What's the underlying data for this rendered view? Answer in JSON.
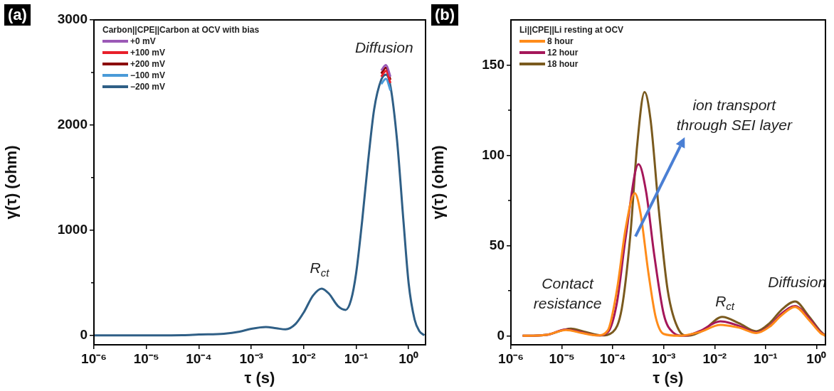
{
  "chart_data": [
    {
      "type": "line",
      "title": "(a)",
      "xlabel": "τ (s)",
      "ylabel": "γ(τ) (ohm)",
      "legend_title": "Carbon||CPE||Carbon at OCV with bias",
      "legend": "top left",
      "log": "x",
      "grid": false,
      "marker": "none",
      "line_style": "solid",
      "xlim": [
        1e-06,
        2.1
      ],
      "ylim": [
        -90,
        3000
      ],
      "xticks": [
        {
          "value": 1e-06,
          "label": "10⁻⁶"
        },
        {
          "value": 1e-05,
          "label": "10⁻⁵"
        },
        {
          "value": 0.0001,
          "label": "10⁻⁴"
        },
        {
          "value": 0.001,
          "label": "10⁻³"
        },
        {
          "value": 0.01,
          "label": "10⁻²"
        },
        {
          "value": 0.1,
          "label": "10⁻¹"
        },
        {
          "value": 1,
          "label": "10⁰"
        }
      ],
      "yticks": [
        0,
        {
          "value": 500,
          "label": null
        },
        1000,
        {
          "value": 1500,
          "label": null
        },
        2000,
        {
          "value": 2500,
          "label": null
        },
        3000
      ],
      "x": [
        1e-06,
        1e-05,
        5e-05,
        0.0001,
        0.0003,
        0.0006,
        0.001,
        0.0019,
        0.003,
        0.0045,
        0.007,
        0.01,
        0.015,
        0.022,
        0.03,
        0.045,
        0.063,
        0.08,
        0.1,
        0.13,
        0.17,
        0.22,
        0.3,
        0.37,
        0.45,
        0.6,
        0.8,
        1.0,
        1.3,
        1.6,
        2.0
      ],
      "series": [
        {
          "name": "+0 mV",
          "color": "#9b59b6",
          "values": [
            null,
            null,
            null,
            null,
            null,
            null,
            null,
            null,
            null,
            null,
            null,
            null,
            null,
            null,
            null,
            null,
            null,
            null,
            null,
            null,
            null,
            null,
            2520,
            2570,
            2460,
            null,
            null,
            null,
            null,
            null,
            null
          ]
        },
        {
          "name": "+100 mV",
          "color": "#e8202a",
          "values": [
            null,
            null,
            null,
            null,
            null,
            null,
            null,
            null,
            null,
            null,
            null,
            null,
            null,
            null,
            null,
            null,
            null,
            null,
            null,
            null,
            null,
            null,
            2460,
            2515,
            2400,
            null,
            null,
            null,
            null,
            null,
            null
          ]
        },
        {
          "name": "+200 mV",
          "color": "#8b0000",
          "values": [
            null,
            null,
            null,
            null,
            null,
            null,
            null,
            null,
            null,
            null,
            null,
            null,
            null,
            null,
            null,
            null,
            null,
            null,
            null,
            null,
            null,
            null,
            2490,
            2545,
            2430,
            null,
            null,
            null,
            null,
            null,
            null
          ]
        },
        {
          "name": "−100 mV",
          "color": "#4a9ad8",
          "values": [
            null,
            null,
            null,
            null,
            null,
            null,
            null,
            null,
            null,
            null,
            null,
            null,
            null,
            null,
            null,
            null,
            null,
            null,
            null,
            null,
            null,
            null,
            2390,
            2440,
            2330,
            null,
            null,
            null,
            null,
            null,
            null
          ]
        },
        {
          "name": "−200 mV",
          "color": "#2f5f86",
          "values": [
            0,
            0,
            2,
            8,
            15,
            35,
            62,
            79,
            67,
            57,
            109,
            218,
            378,
            445,
            398,
            278,
            242,
            338,
            595,
            1090,
            1670,
            2150,
            2430,
            2480,
            2370,
            1860,
            1075,
            495,
            150,
            40,
            0
          ]
        }
      ],
      "annotations": [
        "Diffusion",
        "R$_{ct}$"
      ]
    },
    {
      "type": "line",
      "title": "(b)",
      "xlabel": "τ (s)",
      "ylabel": "γ(τ) (ohm)",
      "legend_title": "Li||CPE||Li resting at OCV",
      "legend": "top left",
      "log": "x",
      "grid": false,
      "marker": "none",
      "line_style": "solid",
      "xlim": [
        1e-06,
        1.5
      ],
      "ylim": [
        -5,
        175
      ],
      "xticks": [
        {
          "value": 1e-06,
          "label": "10⁻⁶"
        },
        {
          "value": 1e-05,
          "label": "10⁻⁵"
        },
        {
          "value": 0.0001,
          "label": "10⁻⁴"
        },
        {
          "value": 0.001,
          "label": "10⁻³"
        },
        {
          "value": 0.01,
          "label": "10⁻²"
        },
        {
          "value": 0.1,
          "label": "10⁻¹"
        },
        {
          "value": 1,
          "label": "10⁰"
        }
      ],
      "yticks": [
        0,
        {
          "value": 25,
          "label": null
        },
        50,
        {
          "value": 75,
          "label": null
        },
        100,
        {
          "value": 125,
          "label": null
        },
        150
      ],
      "series": [
        {
          "name": "8 hour",
          "color": "#ff8c1a",
          "x": [
            1.7e-06,
            5e-06,
            1.2e-05,
            2.5e-05,
            5e-05,
            8e-05,
            0.00012,
            0.00018,
            0.00027,
            0.00035,
            0.0005,
            0.0007,
            0.001,
            0.002,
            0.005,
            0.013,
            0.03,
            0.066,
            0.12,
            0.2,
            0.38,
            0.7,
            1.2,
            1.5
          ],
          "values": [
            0,
            0.5,
            3.2,
            1.5,
            0.2,
            3,
            25,
            60,
            79,
            68,
            35,
            10,
            1,
            0,
            2,
            6,
            4.5,
            1.5,
            5,
            11,
            16,
            9,
            1.5,
            0
          ]
        },
        {
          "name": "12 hour",
          "color": "#a5175a",
          "x": [
            1.7e-06,
            5e-06,
            1.2e-05,
            2.5e-05,
            5e-05,
            8e-05,
            0.00012,
            0.00018,
            0.00032,
            0.00045,
            0.00065,
            0.001,
            0.0015,
            0.0025,
            0.005,
            0.013,
            0.03,
            0.066,
            0.12,
            0.2,
            0.38,
            0.7,
            1.2,
            1.5
          ],
          "values": [
            0,
            0.5,
            3.5,
            1.8,
            0.2,
            2,
            18,
            55,
            95,
            80,
            45,
            12,
            2,
            0,
            2.5,
            8,
            5.5,
            1.8,
            5.5,
            12,
            16.5,
            10,
            2,
            0
          ]
        },
        {
          "name": "18 hour",
          "color": "#7a5a1e",
          "x": [
            1.7e-06,
            5e-06,
            1.5e-05,
            3e-05,
            6e-05,
            0.0001,
            0.00015,
            0.00022,
            0.0003,
            0.00042,
            0.00055,
            0.0008,
            0.0012,
            0.002,
            0.003,
            0.006,
            0.014,
            0.03,
            0.066,
            0.12,
            0.2,
            0.38,
            0.7,
            1.2,
            1.5
          ],
          "values": [
            0,
            0.5,
            4,
            2,
            0.2,
            2,
            15,
            55,
            105,
            135,
            120,
            70,
            25,
            3,
            0,
            3,
            10.5,
            7,
            2.5,
            7,
            14,
            19,
            11,
            2.5,
            0
          ]
        }
      ],
      "annotations": [
        "Contact\nresistance",
        "R$_{ct}$",
        "Diffusion",
        "ion transport\nthrough SEI layer"
      ]
    }
  ]
}
